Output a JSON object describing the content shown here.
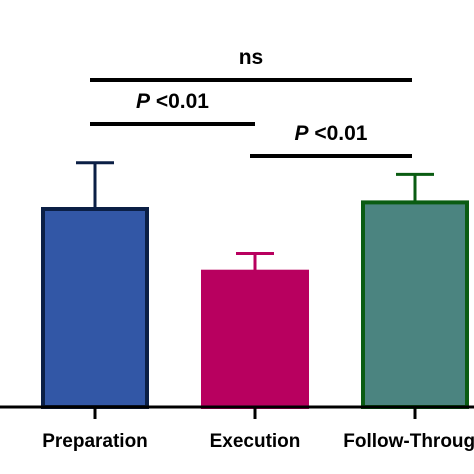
{
  "chart_data": {
    "type": "bar",
    "categories": [
      "Preparation",
      "Execution",
      "Follow-Through"
    ],
    "values": [
      6.0,
      4.1,
      6.2
    ],
    "errors": [
      1.4,
      0.55,
      0.85
    ],
    "ylim": [
      0,
      10
    ],
    "title": "",
    "xlabel": "",
    "ylabel": "",
    "grid": false,
    "bar_fills": [
      "#3257a6",
      "#b8005f",
      "#4b8480"
    ],
    "bar_strokes": [
      "#0b1f45",
      "#b8005f",
      "#0a5c12"
    ],
    "annotations": [
      {
        "text": "ns",
        "from": 0,
        "to": 2
      },
      {
        "prefix": "P",
        "text": " <0.01",
        "from": 0,
        "to": 1
      },
      {
        "prefix": "P",
        "text": " <0.01",
        "from": 1,
        "to": 2
      }
    ]
  }
}
